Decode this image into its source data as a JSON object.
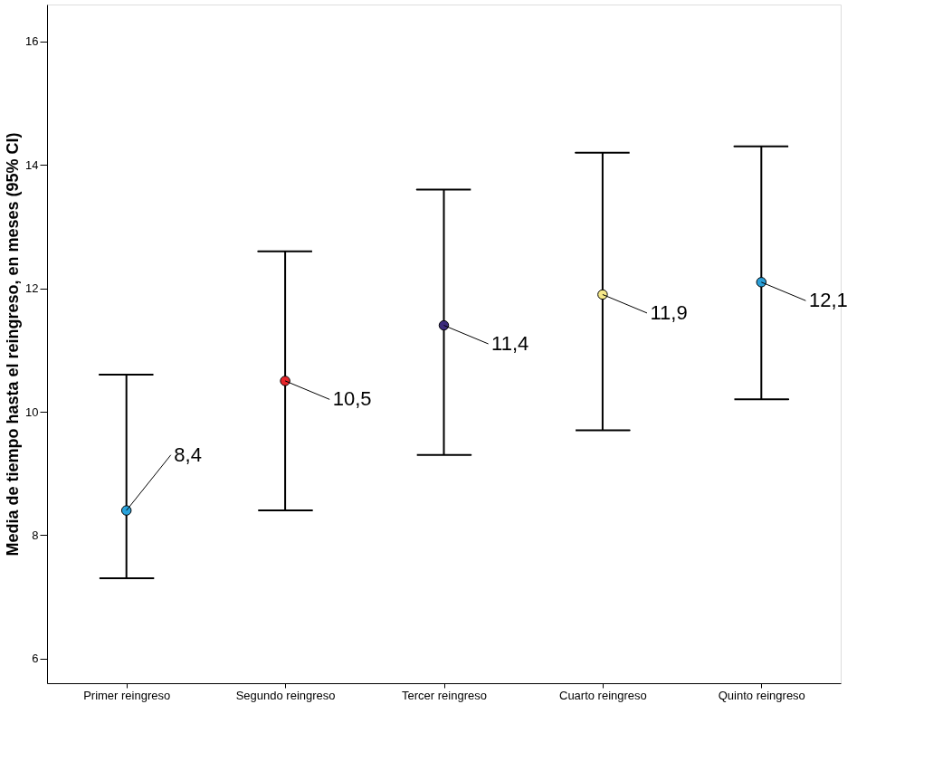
{
  "chart_data": {
    "type": "scatter",
    "ylabel": "Media de tiempo hasta el reingreso, en meses (95% CI)",
    "categories": [
      "Primer reingreso",
      "Segundo reingreso",
      "Tercer reingreso",
      "Cuarto reingreso",
      "Quinto reingreso"
    ],
    "values": [
      8.4,
      10.5,
      11.4,
      11.9,
      12.1
    ],
    "colors": [
      "#29a3dc",
      "#e8262b",
      "#3b2a7a",
      "#f5e88a",
      "#2a9fd8"
    ],
    "errors": [
      [
        7.3,
        10.6
      ],
      [
        8.4,
        12.6
      ],
      [
        9.3,
        13.6
      ],
      [
        9.7,
        14.2
      ],
      [
        10.2,
        14.3
      ]
    ],
    "value_labels": [
      "8,4",
      "10,5",
      "11,4",
      "11,9",
      "12,1"
    ],
    "ylim": [
      5.6,
      16.6
    ],
    "yticks": [
      6,
      8,
      10,
      12,
      14,
      16
    ],
    "grid": false,
    "marker": "circle"
  }
}
